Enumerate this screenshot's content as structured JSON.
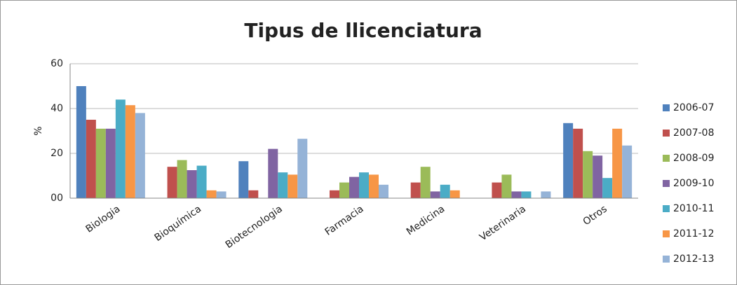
{
  "chart_data": {
    "type": "bar",
    "title": "Tipus de llicenciatura",
    "y_label": "%",
    "categories": [
      "Biologia",
      "Bioquímica",
      "Biotecnologia",
      "Farmacia",
      "Medicina",
      "Veterinaria",
      "Otros"
    ],
    "series": [
      {
        "name": "2006-07",
        "color": "#4f81bd",
        "values": [
          50,
          0,
          16.5,
          0,
          0,
          0,
          33.5
        ]
      },
      {
        "name": "2007-08",
        "color": "#c0504d",
        "values": [
          35,
          14,
          3.5,
          3.5,
          7,
          7,
          31
        ]
      },
      {
        "name": "2008-09",
        "color": "#9bbb59",
        "values": [
          31,
          17,
          0,
          7,
          14,
          10.5,
          21
        ]
      },
      {
        "name": "2009-10",
        "color": "#8064a2",
        "values": [
          31,
          12.5,
          22,
          9.5,
          3,
          3,
          19
        ]
      },
      {
        "name": "2010-11",
        "color": "#4bacc6",
        "values": [
          44,
          14.5,
          11.5,
          11.5,
          6,
          3,
          9
        ]
      },
      {
        "name": "2011-12",
        "color": "#f79646",
        "values": [
          41.5,
          3.5,
          10.5,
          10.5,
          3.5,
          0,
          31
        ]
      },
      {
        "name": "2012-13",
        "color": "#95b3d7",
        "values": [
          38,
          3,
          26.5,
          6,
          0,
          3,
          23.5
        ]
      }
    ],
    "ylim": [
      0,
      60
    ],
    "yticks": [
      {
        "value": 0,
        "label": "00"
      },
      20,
      40,
      60
    ],
    "grid": true,
    "legend": "right"
  }
}
